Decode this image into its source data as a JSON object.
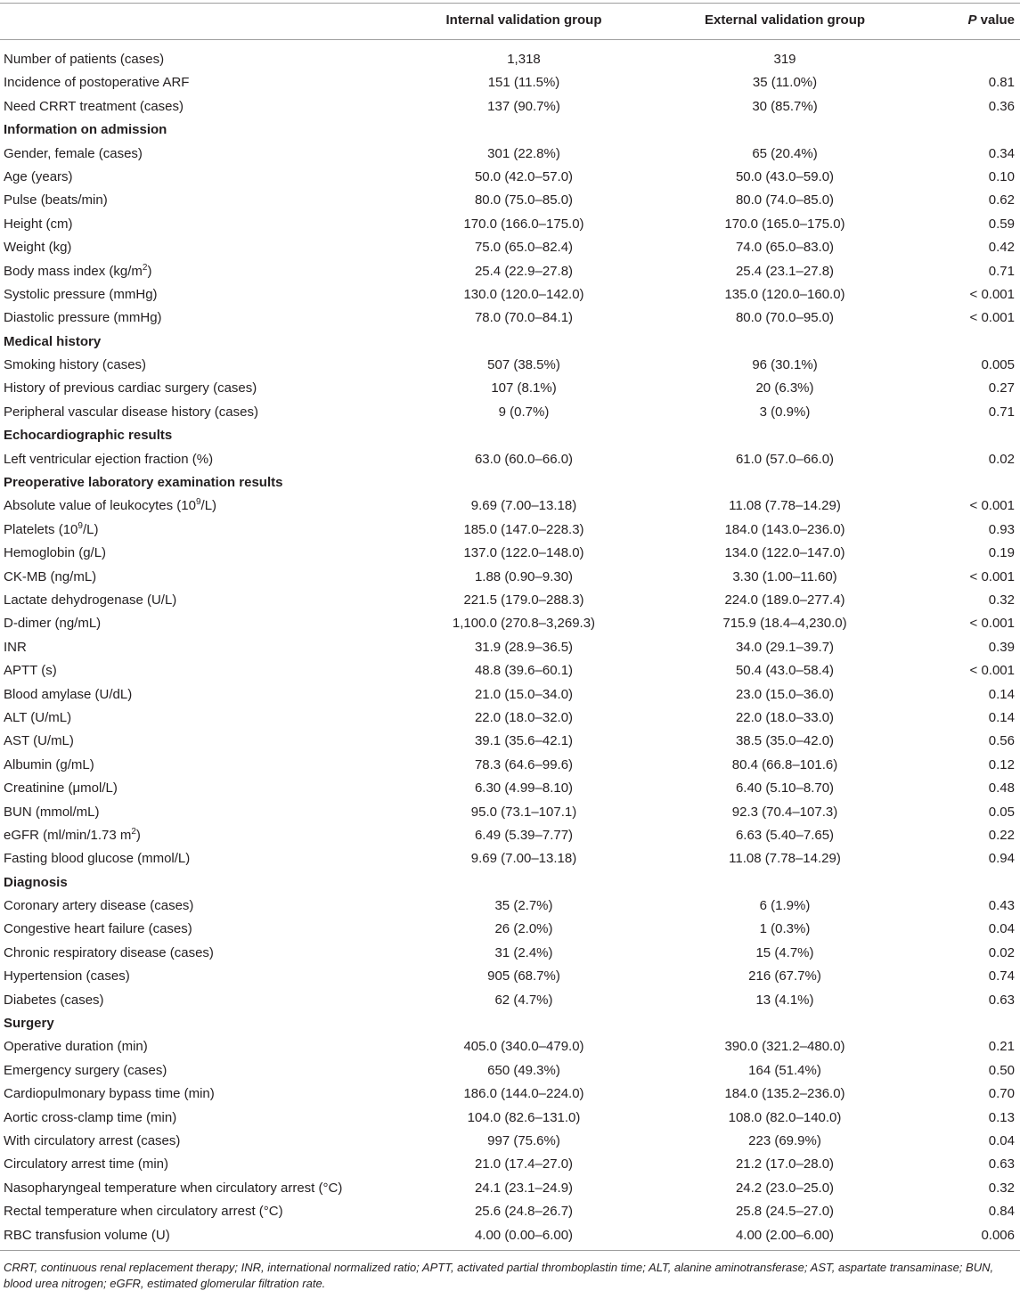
{
  "table": {
    "headers": [
      "",
      "Internal validation group",
      "External validation group",
      "P value"
    ],
    "rows": [
      {
        "label": "Number of patients (cases)",
        "internal": "1,318",
        "external": "319",
        "p": ""
      },
      {
        "label": "Incidence of postoperative ARF",
        "internal": "151 (11.5%)",
        "external": "35 (11.0%)",
        "p": "0.81"
      },
      {
        "label": "Need CRRT treatment (cases)",
        "internal": "137 (90.7%)",
        "external": "30 (85.7%)",
        "p": "0.36"
      },
      {
        "label": "Information on admission",
        "section": true
      },
      {
        "label": "Gender, female (cases)",
        "internal": "301 (22.8%)",
        "external": "65 (20.4%)",
        "p": "0.34"
      },
      {
        "label": "Age (years)",
        "internal": "50.0 (42.0–57.0)",
        "external": "50.0 (43.0–59.0)",
        "p": "0.10"
      },
      {
        "label": "Pulse (beats/min)",
        "internal": "80.0 (75.0–85.0)",
        "external": "80.0 (74.0–85.0)",
        "p": "0.62"
      },
      {
        "label": "Height (cm)",
        "internal": "170.0 (166.0–175.0)",
        "external": "170.0 (165.0–175.0)",
        "p": "0.59"
      },
      {
        "label": "Weight (kg)",
        "internal": "75.0 (65.0–82.4)",
        "external": "74.0 (65.0–83.0)",
        "p": "0.42"
      },
      {
        "label": "Body mass index (kg/m",
        "sup": "2",
        "label_after": ")",
        "internal": "25.4 (22.9–27.8)",
        "external": "25.4 (23.1–27.8)",
        "p": "0.71"
      },
      {
        "label": "Systolic pressure (mmHg)",
        "internal": "130.0 (120.0–142.0)",
        "external": "135.0 (120.0–160.0)",
        "p": "< 0.001"
      },
      {
        "label": "Diastolic pressure (mmHg)",
        "internal": "78.0 (70.0–84.1)",
        "external": "80.0 (70.0–95.0)",
        "p": "< 0.001"
      },
      {
        "label": "Medical history",
        "section": true
      },
      {
        "label": "Smoking history (cases)",
        "internal": "507 (38.5%)",
        "external": "96 (30.1%)",
        "p": "0.005"
      },
      {
        "label": "History of previous cardiac surgery (cases)",
        "internal": "107 (8.1%)",
        "external": "20 (6.3%)",
        "p": "0.27"
      },
      {
        "label": "Peripheral vascular disease history (cases)",
        "internal": "9 (0.7%)",
        "external": "3 (0.9%)",
        "p": "0.71"
      },
      {
        "label": "Echocardiographic results",
        "section": true
      },
      {
        "label": "Left ventricular ejection fraction (%)",
        "internal": "63.0 (60.0–66.0)",
        "external": "61.0 (57.0–66.0)",
        "p": "0.02"
      },
      {
        "label": "Preoperative laboratory examination results",
        "section": true
      },
      {
        "label": "Absolute value of leukocytes (10",
        "sup": "9",
        "label_after": "/L)",
        "internal": "9.69 (7.00–13.18)",
        "external": "11.08 (7.78–14.29)",
        "p": "< 0.001"
      },
      {
        "label": "Platelets (10",
        "sup": "9",
        "label_after": "/L)",
        "internal": "185.0 (147.0–228.3)",
        "external": "184.0 (143.0–236.0)",
        "p": "0.93"
      },
      {
        "label": "Hemoglobin (g/L)",
        "internal": "137.0 (122.0–148.0)",
        "external": "134.0 (122.0–147.0)",
        "p": "0.19"
      },
      {
        "label": "CK-MB (ng/mL)",
        "internal": "1.88 (0.90–9.30)",
        "external": "3.30 (1.00–11.60)",
        "p": "< 0.001"
      },
      {
        "label": "Lactate dehydrogenase (U/L)",
        "internal": "221.5 (179.0–288.3)",
        "external": "224.0 (189.0–277.4)",
        "p": "0.32"
      },
      {
        "label": "D-dimer (ng/mL)",
        "internal": "1,100.0 (270.8–3,269.3)",
        "external": "715.9 (18.4–4,230.0)",
        "p": "< 0.001"
      },
      {
        "label": "INR",
        "internal": "31.9 (28.9–36.5)",
        "external": "34.0 (29.1–39.7)",
        "p": "0.39"
      },
      {
        "label": "APTT (s)",
        "internal": "48.8 (39.6–60.1)",
        "external": "50.4 (43.0–58.4)",
        "p": "< 0.001"
      },
      {
        "label": "Blood amylase (U/dL)",
        "internal": "21.0 (15.0–34.0)",
        "external": "23.0 (15.0–36.0)",
        "p": "0.14"
      },
      {
        "label": "ALT (U/mL)",
        "internal": "22.0 (18.0–32.0)",
        "external": "22.0 (18.0–33.0)",
        "p": "0.14"
      },
      {
        "label": "AST (U/mL)",
        "internal": "39.1 (35.6–42.1)",
        "external": "38.5 (35.0–42.0)",
        "p": "0.56"
      },
      {
        "label": "Albumin (g/mL)",
        "internal": "78.3 (64.6–99.6)",
        "external": "80.4 (66.8–101.6)",
        "p": "0.12"
      },
      {
        "label": "Creatinine (μmol/L)",
        "internal": "6.30 (4.99–8.10)",
        "external": "6.40 (5.10–8.70)",
        "p": "0.48"
      },
      {
        "label": "BUN (mmol/mL)",
        "internal": "95.0 (73.1–107.1)",
        "external": "92.3 (70.4–107.3)",
        "p": "0.05"
      },
      {
        "label": "eGFR (ml/min/1.73 m",
        "sup": "2",
        "label_after": ")",
        "internal": "6.49 (5.39–7.77)",
        "external": "6.63 (5.40–7.65)",
        "p": "0.22"
      },
      {
        "label": "Fasting blood glucose (mmol/L)",
        "internal": "9.69 (7.00–13.18)",
        "external": "11.08 (7.78–14.29)",
        "p": "0.94"
      },
      {
        "label": "Diagnosis",
        "section": true
      },
      {
        "label": "Coronary artery disease (cases)",
        "internal": "35 (2.7%)",
        "external": "6 (1.9%)",
        "p": "0.43"
      },
      {
        "label": "Congestive heart failure (cases)",
        "internal": "26 (2.0%)",
        "external": "1 (0.3%)",
        "p": "0.04"
      },
      {
        "label": "Chronic respiratory disease (cases)",
        "internal": "31 (2.4%)",
        "external": "15 (4.7%)",
        "p": "0.02"
      },
      {
        "label": "Hypertension (cases)",
        "internal": "905 (68.7%)",
        "external": "216 (67.7%)",
        "p": "0.74"
      },
      {
        "label": "Diabetes (cases)",
        "internal": "62 (4.7%)",
        "external": "13 (4.1%)",
        "p": "0.63"
      },
      {
        "label": "Surgery",
        "section": true
      },
      {
        "label": "Operative duration (min)",
        "internal": "405.0 (340.0–479.0)",
        "external": "390.0 (321.2–480.0)",
        "p": "0.21"
      },
      {
        "label": "Emergency surgery (cases)",
        "internal": "650 (49.3%)",
        "external": "164 (51.4%)",
        "p": "0.50"
      },
      {
        "label": "Cardiopulmonary bypass time (min)",
        "internal": "186.0 (144.0–224.0)",
        "external": "184.0 (135.2–236.0)",
        "p": "0.70"
      },
      {
        "label": "Aortic cross-clamp time (min)",
        "internal": "104.0 (82.6–131.0)",
        "external": "108.0 (82.0–140.0)",
        "p": "0.13"
      },
      {
        "label": "With circulatory arrest (cases)",
        "internal": "997 (75.6%)",
        "external": "223 (69.9%)",
        "p": "0.04"
      },
      {
        "label": "Circulatory arrest time (min)",
        "internal": "21.0 (17.4–27.0)",
        "external": "21.2 (17.0–28.0)",
        "p": "0.63"
      },
      {
        "label": "Nasopharyngeal temperature when circulatory arrest (°C)",
        "internal": "24.1 (23.1–24.9)",
        "external": "24.2 (23.0–25.0)",
        "p": "0.32"
      },
      {
        "label": "Rectal temperature when circulatory arrest (°C)",
        "internal": "25.6 (24.8–26.7)",
        "external": "25.8 (24.5–27.0)",
        "p": "0.84"
      },
      {
        "label": "RBC transfusion volume (U)",
        "internal": "4.00 (0.00–6.00)",
        "external": "4.00 (2.00–6.00)",
        "p": "0.006"
      }
    ]
  },
  "footnote": "CRRT, continuous renal replacement therapy; INR, international normalized ratio; APTT, activated partial thromboplastin time; ALT, alanine aminotransferase; AST, aspartate transaminase; BUN, blood urea nitrogen; eGFR, estimated glomerular filtration rate."
}
